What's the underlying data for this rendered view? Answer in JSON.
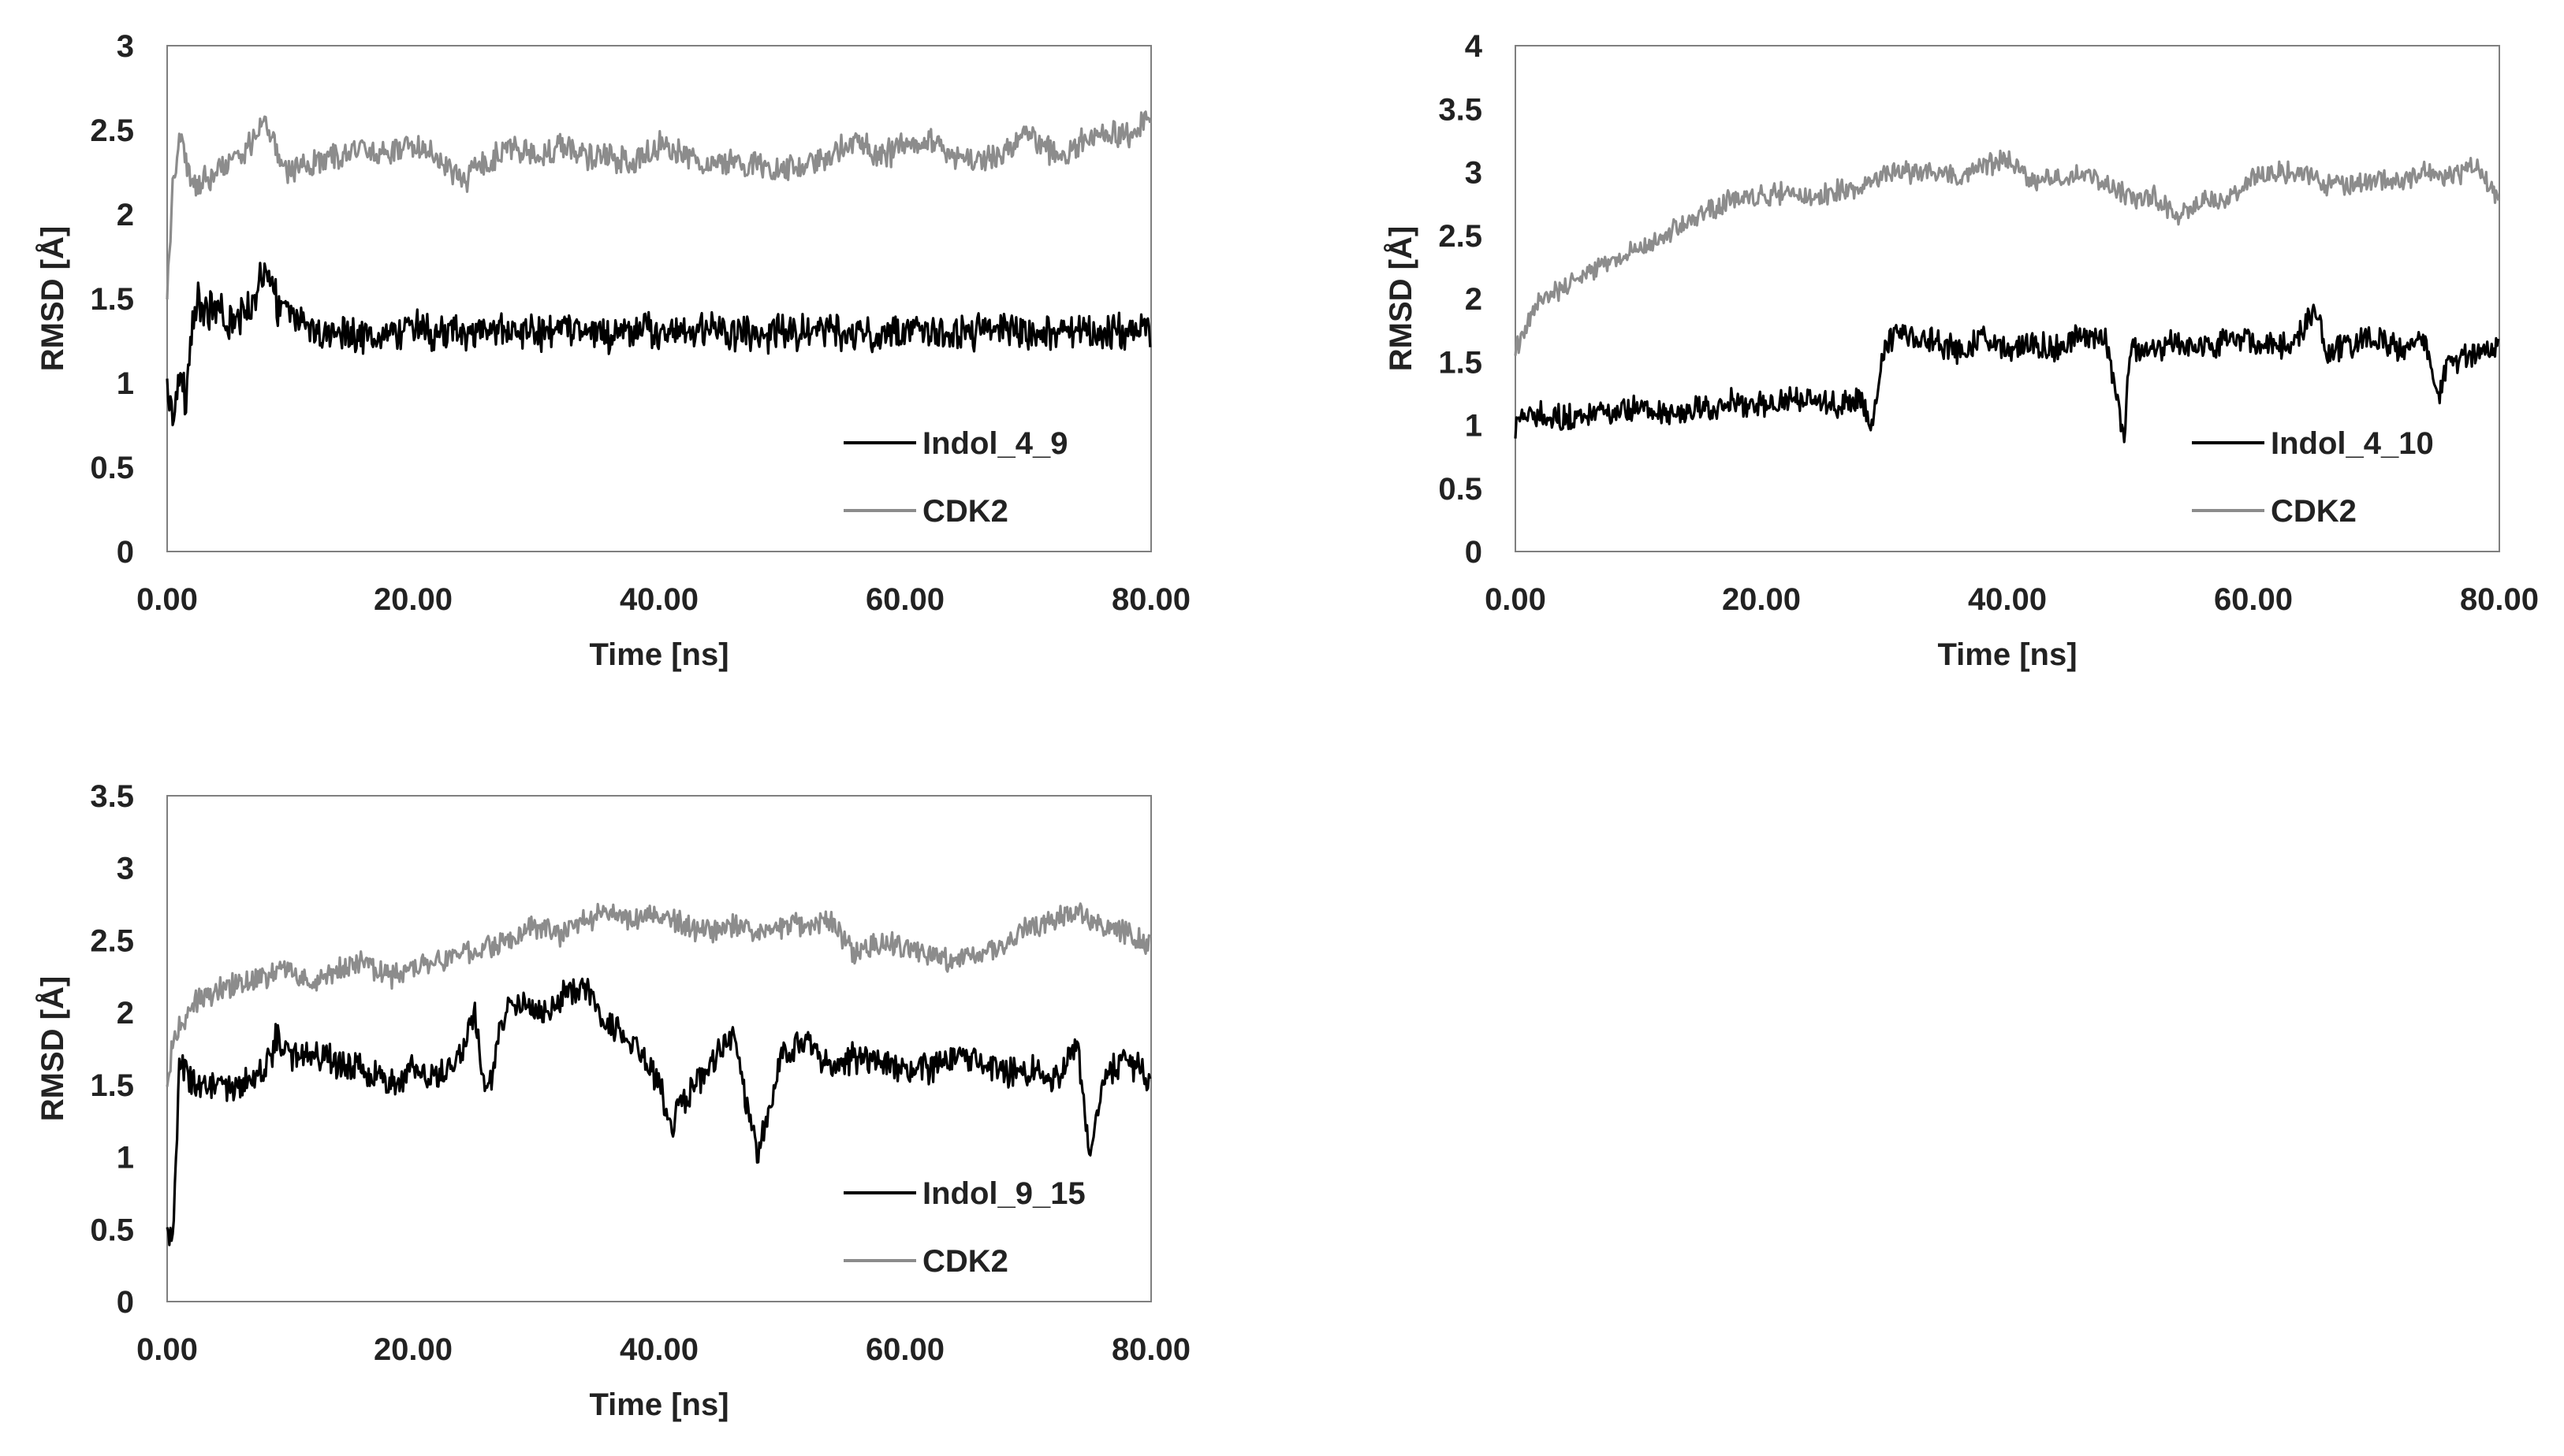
{
  "chart_data": [
    {
      "type": "line",
      "xlabel": "Time [ns]",
      "ylabel": "RMSD [Å]",
      "xlim": [
        0,
        80
      ],
      "ylim": [
        0,
        3
      ],
      "xticks": [
        "0.00",
        "20.00",
        "40.00",
        "60.00",
        "80.00"
      ],
      "yticks": [
        "0",
        "0.5",
        "1",
        "1.5",
        "2",
        "2.5",
        "3"
      ],
      "legend_position": "bottom-right",
      "grid": false,
      "series": [
        {
          "name": "Indol_4_9",
          "color": "#000000",
          "x": [
            0,
            0.5,
            1,
            1.5,
            2,
            2.5,
            3,
            4,
            5,
            6,
            7,
            8,
            9,
            10,
            11,
            12,
            14,
            16,
            18,
            20,
            22,
            24,
            26,
            28,
            30,
            32,
            34,
            36,
            38,
            40,
            42,
            44,
            46,
            48,
            50,
            52,
            54,
            56,
            58,
            60,
            62,
            64,
            66,
            68,
            70,
            72,
            74,
            76,
            78,
            80
          ],
          "values": [
            1.0,
            0.8,
            1.1,
            0.9,
            1.3,
            1.5,
            1.4,
            1.45,
            1.35,
            1.4,
            1.5,
            1.7,
            1.45,
            1.4,
            1.35,
            1.3,
            1.32,
            1.28,
            1.3,
            1.33,
            1.3,
            1.28,
            1.32,
            1.3,
            1.29,
            1.31,
            1.3,
            1.28,
            1.32,
            1.3,
            1.29,
            1.31,
            1.3,
            1.28,
            1.3,
            1.32,
            1.3,
            1.29,
            1.3,
            1.31,
            1.3,
            1.29,
            1.3,
            1.31,
            1.3,
            1.29,
            1.32,
            1.3,
            1.31,
            1.33
          ]
        },
        {
          "name": "CDK2",
          "color": "#8c8c8c",
          "x": [
            0,
            0.5,
            1,
            1.5,
            2,
            2.5,
            3,
            4,
            5,
            6,
            7,
            8,
            9,
            10,
            11,
            12,
            14,
            16,
            18,
            20,
            22,
            24,
            26,
            28,
            30,
            32,
            34,
            36,
            38,
            40,
            42,
            44,
            46,
            48,
            50,
            52,
            54,
            56,
            58,
            60,
            62,
            64,
            66,
            68,
            70,
            72,
            74,
            76,
            78,
            80
          ],
          "values": [
            1.5,
            2.2,
            2.5,
            2.3,
            2.2,
            2.15,
            2.2,
            2.25,
            2.3,
            2.35,
            2.45,
            2.55,
            2.35,
            2.25,
            2.3,
            2.3,
            2.35,
            2.4,
            2.35,
            2.4,
            2.35,
            2.2,
            2.3,
            2.4,
            2.35,
            2.4,
            2.35,
            2.35,
            2.3,
            2.4,
            2.35,
            2.3,
            2.3,
            2.3,
            2.25,
            2.3,
            2.35,
            2.45,
            2.35,
            2.4,
            2.45,
            2.35,
            2.3,
            2.35,
            2.5,
            2.35,
            2.4,
            2.5,
            2.45,
            2.6
          ]
        }
      ]
    },
    {
      "type": "line",
      "xlabel": "Time [ns]",
      "ylabel": "RMSD [Å]",
      "xlim": [
        0,
        80
      ],
      "ylim": [
        0,
        4
      ],
      "xticks": [
        "0.00",
        "20.00",
        "40.00",
        "60.00",
        "80.00"
      ],
      "yticks": [
        "0",
        "0.5",
        "1",
        "1.5",
        "2",
        "2.5",
        "3",
        "3.5",
        "4"
      ],
      "legend_position": "bottom-right",
      "grid": false,
      "series": [
        {
          "name": "Indol_4_10",
          "color": "#000000",
          "x": [
            0,
            2,
            4,
            6,
            8,
            10,
            12,
            14,
            16,
            18,
            20,
            22,
            24,
            26,
            28,
            29,
            30,
            31,
            32,
            34,
            36,
            38,
            40,
            42,
            44,
            46,
            48,
            49.5,
            50,
            52,
            54,
            56,
            58,
            60,
            62,
            64,
            65,
            66,
            68,
            70,
            72,
            74,
            75,
            76,
            78,
            80
          ],
          "values": [
            1.0,
            1.1,
            1.05,
            1.1,
            1.1,
            1.15,
            1.1,
            1.1,
            1.15,
            1.2,
            1.15,
            1.2,
            1.2,
            1.15,
            1.2,
            1.0,
            1.6,
            1.75,
            1.7,
            1.65,
            1.6,
            1.7,
            1.6,
            1.65,
            1.6,
            1.7,
            1.65,
            0.95,
            1.6,
            1.6,
            1.65,
            1.6,
            1.7,
            1.65,
            1.6,
            1.75,
            1.9,
            1.6,
            1.65,
            1.7,
            1.6,
            1.65,
            1.2,
            1.5,
            1.55,
            1.6
          ]
        },
        {
          "name": "CDK2",
          "color": "#8c8c8c",
          "x": [
            0,
            2,
            4,
            6,
            8,
            10,
            12,
            14,
            16,
            18,
            20,
            22,
            24,
            26,
            28,
            30,
            32,
            34,
            36,
            38,
            40,
            42,
            44,
            46,
            48,
            50,
            52,
            54,
            56,
            58,
            60,
            62,
            64,
            66,
            68,
            70,
            72,
            74,
            76,
            78,
            80
          ],
          "values": [
            1.6,
            2.0,
            2.1,
            2.2,
            2.3,
            2.4,
            2.5,
            2.6,
            2.7,
            2.8,
            2.8,
            2.85,
            2.8,
            2.85,
            2.85,
            3.0,
            3.0,
            3.0,
            2.95,
            3.05,
            3.1,
            2.95,
            2.95,
            3.0,
            2.9,
            2.8,
            2.8,
            2.65,
            2.8,
            2.8,
            2.95,
            3.0,
            3.0,
            2.9,
            2.9,
            2.95,
            2.95,
            3.0,
            2.95,
            3.05,
            2.8
          ]
        }
      ]
    },
    {
      "type": "line",
      "xlabel": "Time [ns]",
      "ylabel": "RMSD [Å]",
      "xlim": [
        0,
        80
      ],
      "ylim": [
        0,
        3.5
      ],
      "xticks": [
        "0.00",
        "20.00",
        "40.00",
        "60.00",
        "80.00"
      ],
      "yticks": [
        "0",
        "0.5",
        "1",
        "1.5",
        "2",
        "2.5",
        "3",
        "3.5"
      ],
      "legend_position": "bottom-right",
      "grid": false,
      "series": [
        {
          "name": "Indol_9_15",
          "color": "#000000",
          "x": [
            0,
            0.5,
            1,
            2,
            4,
            6,
            8,
            9,
            10,
            12,
            14,
            16,
            18,
            20,
            22,
            24,
            25,
            26,
            27,
            28,
            30,
            32,
            34,
            35,
            36,
            38,
            40,
            41,
            42,
            44,
            46,
            47,
            48,
            50,
            52,
            54,
            56,
            58,
            60,
            62,
            64,
            66,
            68,
            70,
            72,
            74,
            75,
            76,
            78,
            80
          ],
          "values": [
            0.5,
            0.4,
            1.7,
            1.5,
            1.45,
            1.5,
            1.6,
            1.85,
            1.7,
            1.7,
            1.65,
            1.6,
            1.5,
            1.6,
            1.55,
            1.7,
            2.0,
            1.4,
            1.9,
            2.1,
            2.0,
            2.1,
            2.2,
            2.0,
            1.9,
            1.8,
            1.5,
            1.2,
            1.4,
            1.6,
            1.85,
            1.4,
            1.0,
            1.7,
            1.8,
            1.6,
            1.7,
            1.65,
            1.6,
            1.6,
            1.7,
            1.65,
            1.6,
            1.6,
            1.5,
            1.8,
            1.0,
            1.5,
            1.7,
            1.5
          ]
        },
        {
          "name": "CDK2",
          "color": "#8c8c8c",
          "x": [
            0,
            0.5,
            1,
            2,
            4,
            6,
            8,
            10,
            12,
            14,
            16,
            18,
            20,
            22,
            24,
            26,
            28,
            30,
            32,
            34,
            36,
            38,
            40,
            42,
            44,
            46,
            48,
            50,
            52,
            54,
            56,
            58,
            60,
            62,
            64,
            66,
            68,
            70,
            72,
            74,
            76,
            78,
            80
          ],
          "values": [
            1.5,
            1.8,
            1.9,
            2.05,
            2.15,
            2.2,
            2.25,
            2.3,
            2.2,
            2.3,
            2.35,
            2.25,
            2.3,
            2.35,
            2.4,
            2.45,
            2.5,
            2.6,
            2.55,
            2.65,
            2.7,
            2.65,
            2.7,
            2.6,
            2.55,
            2.6,
            2.55,
            2.6,
            2.6,
            2.65,
            2.4,
            2.5,
            2.45,
            2.4,
            2.35,
            2.4,
            2.45,
            2.6,
            2.65,
            2.7,
            2.6,
            2.55,
            2.45
          ]
        }
      ]
    }
  ]
}
